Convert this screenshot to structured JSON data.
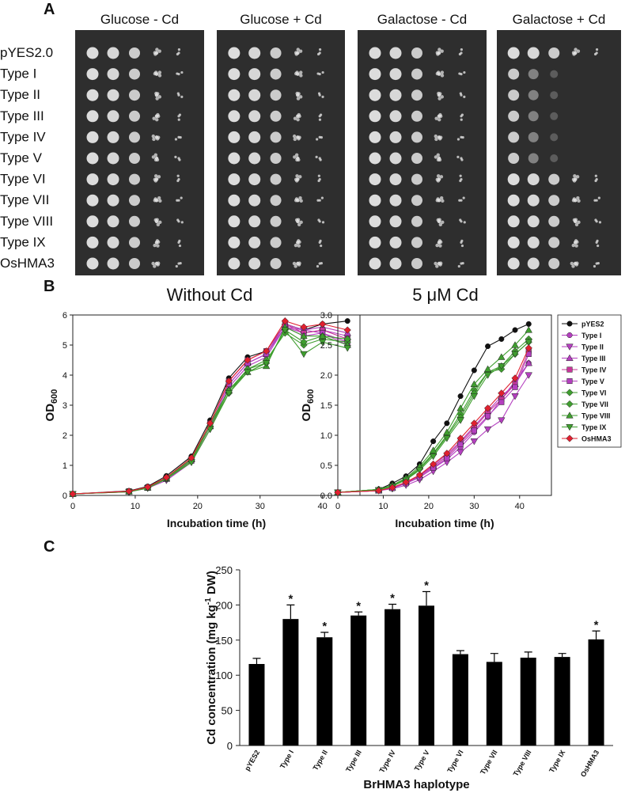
{
  "panel_labels": [
    "A",
    "B",
    "C"
  ],
  "panel_a": {
    "plates": [
      "Glucose - Cd",
      "Glucose + Cd",
      "Galactose - Cd",
      "Galactose + Cd"
    ],
    "rows": [
      "pYES2.0",
      "Type I",
      "Type II",
      "Type III",
      "Type IV",
      "Type  V",
      "Type VI",
      "Type VII",
      "Type VIII",
      "Type IX",
      "OsHMA3"
    ]
  },
  "chart_data": [
    {
      "type": "line",
      "title": "Without Cd",
      "xlabel": "Incubation time (h)",
      "ylabel": "OD",
      "ylabel_sub": "600",
      "x": [
        0,
        9,
        12,
        15,
        19,
        22,
        25,
        28,
        31,
        34,
        37,
        40,
        44
      ],
      "xlim": [
        0,
        46
      ],
      "xticks": [
        0,
        10,
        20,
        30,
        40
      ],
      "ylim": [
        0,
        6
      ],
      "yticks": [
        0,
        1,
        2,
        3,
        4,
        5,
        6
      ],
      "legend": false,
      "series": [
        {
          "name": "pYES2",
          "color": "#111111",
          "marker": "circle",
          "values": [
            0.05,
            0.15,
            0.3,
            0.65,
            1.3,
            2.5,
            3.9,
            4.6,
            4.8,
            5.7,
            5.5,
            5.7,
            5.8
          ]
        },
        {
          "name": "Type I",
          "color": "#b43fbf",
          "marker": "circle",
          "values": [
            0.05,
            0.13,
            0.25,
            0.55,
            1.15,
            2.3,
            3.7,
            4.4,
            4.7,
            5.6,
            5.4,
            5.5,
            5.3
          ]
        },
        {
          "name": "Type II",
          "color": "#b43fbf",
          "marker": "triangle-down",
          "values": [
            0.05,
            0.12,
            0.24,
            0.5,
            1.1,
            2.2,
            3.6,
            4.3,
            4.6,
            5.6,
            5.5,
            5.4,
            5.1
          ]
        },
        {
          "name": "Type III",
          "color": "#b43fbf",
          "marker": "triangle-up",
          "values": [
            0.05,
            0.13,
            0.26,
            0.55,
            1.2,
            2.3,
            3.7,
            4.4,
            4.7,
            5.7,
            5.5,
            5.6,
            5.4
          ]
        },
        {
          "name": "Type IV",
          "color": "#c8359a",
          "marker": "square",
          "values": [
            0.05,
            0.14,
            0.27,
            0.58,
            1.2,
            2.4,
            3.8,
            4.5,
            4.8,
            5.7,
            5.4,
            5.5,
            5.2
          ]
        },
        {
          "name": "Type V",
          "color": "#b43fbf",
          "marker": "square",
          "values": [
            0.05,
            0.13,
            0.25,
            0.56,
            1.15,
            2.3,
            3.7,
            4.4,
            4.7,
            5.6,
            5.3,
            5.4,
            5.0
          ]
        },
        {
          "name": "Type VI",
          "color": "#3f9e2f",
          "marker": "diamond",
          "values": [
            0.05,
            0.13,
            0.27,
            0.6,
            1.2,
            2.4,
            3.5,
            4.2,
            4.5,
            5.4,
            5.0,
            5.2,
            5.1
          ]
        },
        {
          "name": "Type VII",
          "color": "#3f9e2f",
          "marker": "diamond",
          "values": [
            0.05,
            0.12,
            0.25,
            0.55,
            1.15,
            2.3,
            3.4,
            4.2,
            4.4,
            5.5,
            5.1,
            5.3,
            5.2
          ]
        },
        {
          "name": "Type VIII",
          "color": "#3f9e2f",
          "marker": "triangle-up",
          "values": [
            0.05,
            0.13,
            0.26,
            0.58,
            1.2,
            2.3,
            3.5,
            4.1,
            4.3,
            5.6,
            5.3,
            5.3,
            5.0
          ]
        },
        {
          "name": "Type IX",
          "color": "#3f9e2f",
          "marker": "triangle-down",
          "values": [
            0.05,
            0.12,
            0.24,
            0.55,
            1.1,
            2.2,
            3.4,
            4.1,
            4.4,
            5.5,
            4.7,
            5.1,
            4.9
          ]
        },
        {
          "name": "OsHMA3",
          "color": "#e02030",
          "marker": "diamond",
          "values": [
            0.05,
            0.14,
            0.28,
            0.6,
            1.25,
            2.4,
            3.8,
            4.5,
            4.8,
            5.8,
            5.6,
            5.7,
            5.5
          ]
        }
      ]
    },
    {
      "type": "line",
      "title": "5 μM Cd",
      "xlabel": "Incubation time (h)",
      "ylabel": "OD",
      "ylabel_sub": "600",
      "x": [
        0,
        9,
        12,
        15,
        18,
        21,
        24,
        27,
        30,
        33,
        36,
        39,
        42
      ],
      "xlim": [
        0,
        47
      ],
      "xticks": [
        0,
        10,
        20,
        30,
        40
      ],
      "ylim": [
        0,
        3
      ],
      "yticks": [
        {
          "value": 0,
          "label": "0.0"
        },
        {
          "value": 0.5,
          "label": "0.5"
        },
        {
          "value": 1,
          "label": "1.0"
        },
        {
          "value": 1.5,
          "label": "1.5"
        },
        {
          "value": 2,
          "label": "2.0"
        },
        {
          "value": 2.5,
          "label": "2.5"
        },
        {
          "value": 3,
          "label": "3.0"
        }
      ],
      "legend": true,
      "series": [
        {
          "name": "pYES2",
          "color": "#111111",
          "marker": "circle",
          "values": [
            0.05,
            0.1,
            0.2,
            0.32,
            0.52,
            0.9,
            1.2,
            1.65,
            2.08,
            2.48,
            2.6,
            2.75,
            2.85
          ]
        },
        {
          "name": "Type I",
          "color": "#b43fbf",
          "marker": "circle",
          "values": [
            0.05,
            0.08,
            0.12,
            0.2,
            0.3,
            0.45,
            0.6,
            0.8,
            1.05,
            1.3,
            1.6,
            1.9,
            2.2
          ]
        },
        {
          "name": "Type II",
          "color": "#b43fbf",
          "marker": "triangle-down",
          "values": [
            0.05,
            0.08,
            0.11,
            0.17,
            0.26,
            0.4,
            0.55,
            0.72,
            0.9,
            1.1,
            1.25,
            1.65,
            2.0
          ]
        },
        {
          "name": "Type III",
          "color": "#b43fbf",
          "marker": "triangle-up",
          "values": [
            0.05,
            0.08,
            0.13,
            0.22,
            0.33,
            0.5,
            0.68,
            0.9,
            1.15,
            1.4,
            1.65,
            1.85,
            2.2
          ]
        },
        {
          "name": "Type IV",
          "color": "#c8359a",
          "marker": "square",
          "values": [
            0.05,
            0.08,
            0.13,
            0.21,
            0.32,
            0.48,
            0.65,
            0.88,
            1.12,
            1.38,
            1.6,
            1.85,
            2.4
          ]
        },
        {
          "name": "Type V",
          "color": "#b43fbf",
          "marker": "square",
          "values": [
            0.05,
            0.08,
            0.12,
            0.2,
            0.3,
            0.46,
            0.62,
            0.85,
            1.08,
            1.32,
            1.55,
            1.8,
            2.35
          ]
        },
        {
          "name": "Type VI",
          "color": "#3f9e2f",
          "marker": "diamond",
          "values": [
            0.05,
            0.1,
            0.16,
            0.28,
            0.45,
            0.7,
            1.0,
            1.35,
            1.75,
            2.05,
            2.15,
            2.4,
            2.6
          ]
        },
        {
          "name": "Type VII",
          "color": "#3f9e2f",
          "marker": "diamond",
          "values": [
            0.05,
            0.1,
            0.16,
            0.27,
            0.44,
            0.68,
            0.98,
            1.3,
            1.7,
            2.05,
            2.1,
            2.35,
            2.55
          ]
        },
        {
          "name": "Type VIII",
          "color": "#3f9e2f",
          "marker": "triangle-up",
          "values": [
            0.05,
            0.1,
            0.17,
            0.29,
            0.48,
            0.75,
            1.05,
            1.45,
            1.85,
            2.1,
            2.3,
            2.5,
            2.75
          ]
        },
        {
          "name": "Type IX",
          "color": "#3f9e2f",
          "marker": "triangle-down",
          "values": [
            0.05,
            0.09,
            0.15,
            0.26,
            0.42,
            0.65,
            0.95,
            1.25,
            1.65,
            2.0,
            2.15,
            2.35,
            2.55
          ]
        },
        {
          "name": "OsHMA3",
          "color": "#e02030",
          "marker": "diamond",
          "values": [
            0.05,
            0.08,
            0.13,
            0.22,
            0.34,
            0.52,
            0.7,
            0.95,
            1.2,
            1.45,
            1.7,
            1.95,
            2.45
          ]
        }
      ]
    },
    {
      "type": "bar",
      "xlabel": "BrHMA3 haplotype",
      "ylabel": "Cd concentration (mg kg",
      "ylabel_sup": "-1",
      "ylabel_end": " DW)",
      "categories": [
        "pYES2",
        "Type I",
        "Type II",
        "Type III",
        "Type IV",
        "Type V",
        "Type VI",
        "Type VII",
        "Type VIII",
        "Type IX",
        "OsHMA3"
      ],
      "values": [
        116,
        180,
        154,
        185,
        194,
        199,
        130,
        119,
        125,
        126,
        151
      ],
      "errors": [
        8,
        20,
        7,
        5,
        7,
        20,
        5,
        12,
        8,
        5,
        12
      ],
      "significant": [
        false,
        true,
        true,
        true,
        true,
        true,
        false,
        false,
        false,
        false,
        true
      ],
      "significance_label": "*",
      "color": "#000000",
      "ylim": [
        0,
        250
      ],
      "yticks": [
        0,
        50,
        100,
        150,
        200,
        250
      ]
    }
  ]
}
